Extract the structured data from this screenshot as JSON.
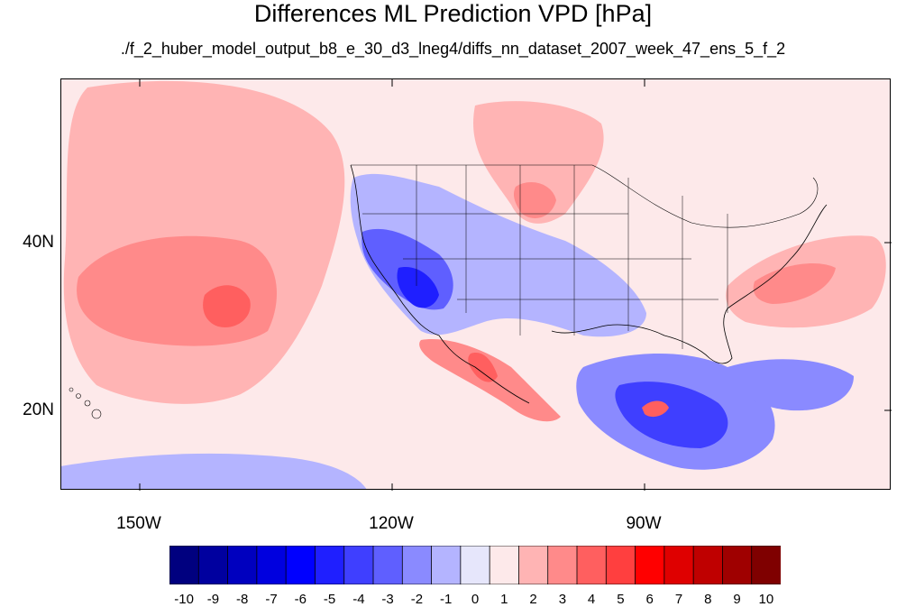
{
  "title": "Differences ML Prediction VPD [hPa]",
  "subtitle": "./f_2_huber_model_output_b8_e_30_d3_lneg4/diffs_nn_dataset_2007_week_47_ens_5_f_2",
  "axes": {
    "lat_labels": [
      "40N",
      "20N"
    ],
    "lon_labels": [
      "150W",
      "120W",
      "90W"
    ]
  },
  "colorbar": {
    "labels": [
      "-10",
      "-9",
      "-8",
      "-7",
      "-6",
      "-5",
      "-4",
      "-3",
      "-2",
      "-1",
      "0",
      "1",
      "2",
      "3",
      "4",
      "5",
      "6",
      "7",
      "8",
      "9",
      "10"
    ],
    "colors": [
      "#00007f",
      "#00009f",
      "#0000bf",
      "#0000df",
      "#0000ff",
      "#1f1fff",
      "#3f3fff",
      "#5f5fff",
      "#8a8aff",
      "#b4b4ff",
      "#e6e6fb",
      "#fde9ea",
      "#ffb4b4",
      "#ff8a8a",
      "#ff5f5f",
      "#ff3f3f",
      "#ff0000",
      "#df0000",
      "#bf0000",
      "#9f0000",
      "#7f0000"
    ]
  }
}
